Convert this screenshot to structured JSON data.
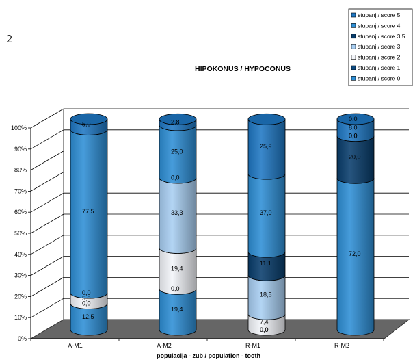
{
  "page": {
    "figure_number": "2"
  },
  "chart_data": {
    "type": "bar",
    "stacked": true,
    "percent": true,
    "title": "HIPOKONUS / HYPOCONUS",
    "xlabel": "populacija - zub / population - tooth",
    "ylabel": "",
    "ylim": [
      0,
      100
    ],
    "yticks": [
      "0%",
      "10%",
      "20%",
      "30%",
      "40%",
      "50%",
      "60%",
      "70%",
      "80%",
      "90%",
      "100%"
    ],
    "categories": [
      "A-M1",
      "A-M2",
      "R-M1",
      "R-M2"
    ],
    "series": [
      {
        "name": "stupanj / score 0",
        "color": "#2e8fd6",
        "values": [
          12.5,
          19.4,
          0.0,
          72.0
        ],
        "labels": [
          "12,5",
          "19,4",
          "",
          "72,0"
        ]
      },
      {
        "name": "stupanj / score 1",
        "color": "#0d4a80",
        "values": [
          0.0,
          0.0,
          0.0,
          0.0
        ],
        "labels": [
          "0,0",
          "0,0",
          "0,0",
          ""
        ]
      },
      {
        "name": "stupanj / score 2",
        "color": "#f4f6fa",
        "values": [
          5.0,
          19.4,
          7.4,
          0.0
        ],
        "labels": [
          "5,0",
          "19,4",
          "7,4",
          ""
        ]
      },
      {
        "name": "stupanj / score 3",
        "color": "#a9cff3",
        "values": [
          0.0,
          33.3,
          18.5,
          0.0
        ],
        "labels": [
          "0,0",
          "33,3",
          "18,5",
          ""
        ]
      },
      {
        "name": "stupanj / score 3,5",
        "color": "#083d6c",
        "values": [
          0.0,
          0.0,
          11.1,
          20.0
        ],
        "labels": [
          "",
          "",
          "11,1",
          "20,0"
        ]
      },
      {
        "name": "stupanj / score 4",
        "color": "#2e8fd6",
        "values": [
          77.5,
          25.0,
          37.0,
          0.0
        ],
        "labels": [
          "77,5",
          "25,0",
          "37,0",
          "0,0"
        ]
      },
      {
        "name": "stupanj / score 5",
        "color": "#1f78c4",
        "values": [
          5.0,
          2.8,
          25.9,
          8.0
        ],
        "labels": [
          "5,0",
          "2,8",
          "25,9",
          "8,0"
        ]
      }
    ],
    "extra_labels": [
      {
        "category": 1,
        "at": 72.2,
        "text": "0,0"
      },
      {
        "category": 3,
        "at": 92.0,
        "text": "0,0"
      },
      {
        "category": 3,
        "at": 100.0,
        "text": "0,0"
      },
      {
        "category": 2,
        "at": 0.0,
        "text": "0,0"
      }
    ],
    "legend_position": "top-right",
    "legend_order": [
      "stupanj / score 5",
      "stupanj / score 4",
      "stupanj / score 3,5",
      "stupanj / score 3",
      "stupanj / score 2",
      "stupanj / score 1",
      "stupanj / score 0"
    ],
    "grid": true
  }
}
